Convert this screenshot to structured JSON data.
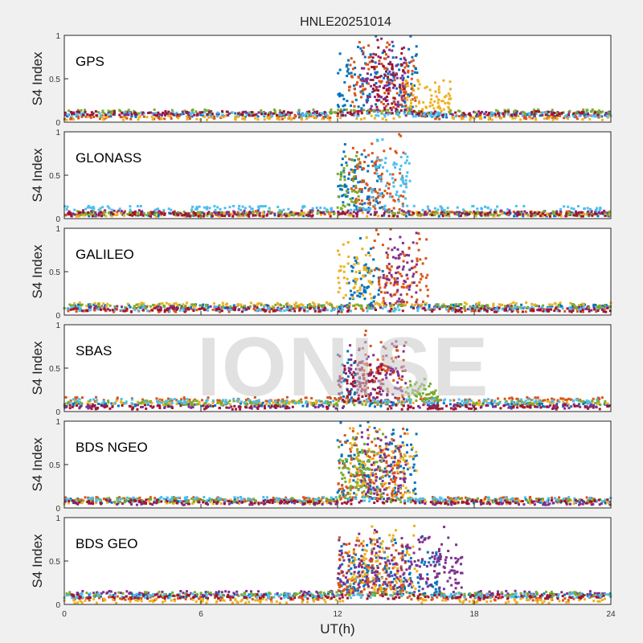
{
  "figure": {
    "title": "HNLE20251014",
    "xlabel": "UT(h)",
    "watermark": "IONISE"
  },
  "colors": [
    "#0072BD",
    "#D95319",
    "#EDB120",
    "#7E2F8E",
    "#77AC30",
    "#4DBEEE",
    "#A2142F"
  ],
  "chart_data": [
    {
      "type": "scatter",
      "label": "GPS",
      "ylabel": "S4 Index",
      "xlim": [
        0,
        24
      ],
      "ylim": [
        0,
        1
      ],
      "xticks": [
        "0",
        "6",
        "12",
        "18",
        "24"
      ],
      "yticks": [
        "0",
        "0.5",
        "1"
      ],
      "series": [
        {
          "baseline": 0.08,
          "active": [
            12,
            15.5
          ],
          "peak": 0.95
        },
        {
          "baseline": 0.06,
          "active": [
            12.5,
            15.5
          ],
          "peak": 0.95
        },
        {
          "baseline": 0.05,
          "active": [
            15,
            17
          ],
          "peak": 0.45
        },
        {
          "baseline": 0.1,
          "active": [
            13,
            15
          ],
          "peak": 0.95
        },
        {
          "baseline": 0.12,
          "active": [
            0,
            0
          ],
          "peak": 0
        },
        {
          "baseline": 0.09,
          "active": [
            0,
            0
          ],
          "peak": 0
        },
        {
          "baseline": 0.1,
          "active": [
            13.5,
            15
          ],
          "peak": 0.95
        }
      ]
    },
    {
      "type": "scatter",
      "label": "GLONASS",
      "ylabel": "S4 Index",
      "xlim": [
        0,
        24
      ],
      "ylim": [
        0,
        1
      ],
      "xticks": [
        "0",
        "6",
        "12",
        "18",
        "24"
      ],
      "yticks": [
        "0",
        "0.5",
        "1"
      ],
      "series": [
        {
          "baseline": 0.05,
          "active": [
            12,
            14
          ],
          "peak": 0.8
        },
        {
          "baseline": 0.06,
          "active": [
            12.5,
            15
          ],
          "peak": 0.9
        },
        {
          "baseline": 0.05,
          "active": [
            0,
            0
          ],
          "peak": 0
        },
        {
          "baseline": 0.07,
          "active": [
            0,
            0
          ],
          "peak": 0
        },
        {
          "baseline": 0.06,
          "active": [
            12,
            13
          ],
          "peak": 0.7
        },
        {
          "baseline": 0.12,
          "active": [
            13.5,
            15.2
          ],
          "peak": 0.95
        },
        {
          "baseline": 0.05,
          "active": [
            0,
            0
          ],
          "peak": 0
        }
      ]
    },
    {
      "type": "scatter",
      "label": "GALILEO",
      "ylabel": "S4 Index",
      "xlim": [
        0,
        24
      ],
      "ylim": [
        0,
        1
      ],
      "xticks": [
        "0",
        "6",
        "12",
        "18",
        "24"
      ],
      "yticks": [
        "0",
        "0.5",
        "1"
      ],
      "series": [
        {
          "baseline": 0.1,
          "active": [
            12.5,
            14
          ],
          "peak": 0.8
        },
        {
          "baseline": 0.06,
          "active": [
            13.5,
            16
          ],
          "peak": 0.95
        },
        {
          "baseline": 0.12,
          "active": [
            12,
            13.5
          ],
          "peak": 0.8
        },
        {
          "baseline": 0.08,
          "active": [
            14,
            15.5
          ],
          "peak": 0.95
        },
        {
          "baseline": 0.1,
          "active": [
            0,
            0
          ],
          "peak": 0
        },
        {
          "baseline": 0.07,
          "active": [
            0,
            0
          ],
          "peak": 0
        },
        {
          "baseline": 0.06,
          "active": [
            0,
            0
          ],
          "peak": 0
        }
      ]
    },
    {
      "type": "scatter",
      "label": "SBAS",
      "ylabel": "S4 Index",
      "xlim": [
        0,
        24
      ],
      "ylim": [
        0,
        1
      ],
      "xticks": [
        "0",
        "6",
        "12",
        "18",
        "24"
      ],
      "yticks": [
        "0",
        "0.5",
        "1"
      ],
      "series": [
        {
          "baseline": 0.08,
          "active": [
            12,
            13
          ],
          "peak": 0.65
        },
        {
          "baseline": 0.14,
          "active": [
            13,
            15
          ],
          "peak": 0.9
        },
        {
          "baseline": 0.1,
          "active": [
            0,
            0
          ],
          "peak": 0
        },
        {
          "baseline": 0.06,
          "active": [
            12.5,
            15
          ],
          "peak": 0.8
        },
        {
          "baseline": 0.1,
          "active": [
            15,
            16.5
          ],
          "peak": 0.3
        },
        {
          "baseline": 0.12,
          "active": [
            0,
            0
          ],
          "peak": 0
        },
        {
          "baseline": 0.05,
          "active": [
            12,
            14
          ],
          "peak": 0.6
        }
      ]
    },
    {
      "type": "scatter",
      "label": "BDS NGEO",
      "ylabel": "S4 Index",
      "xlim": [
        0,
        24
      ],
      "ylim": [
        0,
        1
      ],
      "xticks": [
        "0",
        "6",
        "12",
        "18",
        "24"
      ],
      "yticks": [
        "0",
        "0.5",
        "1"
      ],
      "series": [
        {
          "baseline": 0.08,
          "active": [
            12,
            15.5
          ],
          "peak": 0.95
        },
        {
          "baseline": 0.1,
          "active": [
            12,
            15
          ],
          "peak": 0.9
        },
        {
          "baseline": 0.07,
          "active": [
            12.5,
            15.5
          ],
          "peak": 0.9
        },
        {
          "baseline": 0.06,
          "active": [
            13,
            15
          ],
          "peak": 0.95
        },
        {
          "baseline": 0.09,
          "active": [
            12,
            14
          ],
          "peak": 0.85
        },
        {
          "baseline": 0.1,
          "active": [
            0,
            0
          ],
          "peak": 0
        },
        {
          "baseline": 0.07,
          "active": [
            0,
            0
          ],
          "peak": 0
        }
      ]
    },
    {
      "type": "scatter",
      "label": "BDS GEO",
      "ylabel": "S4 Index",
      "xlim": [
        0,
        24
      ],
      "ylim": [
        0,
        1
      ],
      "xticks": [
        "0",
        "6",
        "12",
        "18",
        "24"
      ],
      "yticks": [
        "0",
        "0.5",
        "1"
      ],
      "series": [
        {
          "baseline": 0.1,
          "active": [
            12,
            16.5
          ],
          "peak": 0.75
        },
        {
          "baseline": 0.07,
          "active": [
            12,
            15
          ],
          "peak": 0.75
        },
        {
          "baseline": 0.04,
          "active": [
            12.5,
            15.5
          ],
          "peak": 0.9
        },
        {
          "baseline": 0.13,
          "active": [
            12,
            17.5
          ],
          "peak": 0.8
        },
        {
          "baseline": 0.12,
          "active": [
            0,
            0
          ],
          "peak": 0
        },
        {
          "baseline": 0.1,
          "active": [
            0,
            0
          ],
          "peak": 0
        },
        {
          "baseline": 0.09,
          "active": [
            0,
            0
          ],
          "peak": 0
        }
      ]
    }
  ]
}
